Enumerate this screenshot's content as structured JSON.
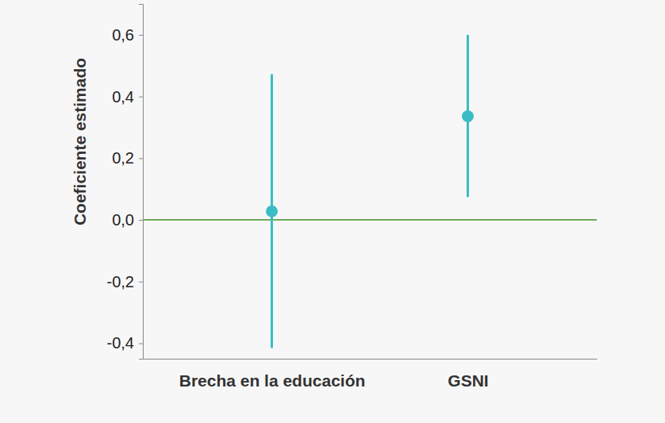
{
  "chart_data": {
    "type": "errorbar",
    "y_label": "Coeficiente estimado",
    "categories": [
      "Brecha en la educación",
      "GSNI"
    ],
    "values": [
      0.028,
      0.336
    ],
    "ci_low": [
      -0.415,
      0.074
    ],
    "ci_high": [
      0.472,
      0.6
    ],
    "color": "#3bbcc6",
    "marker": "circle",
    "reference_line": 0,
    "ylim": [
      -0.45,
      0.7
    ],
    "yticks": [
      {
        "value": -0.4,
        "label": "-0,4"
      },
      {
        "value": -0.2,
        "label": "-0,2"
      },
      {
        "value": 0,
        "label": "0,0"
      },
      {
        "value": 0.2,
        "label": "0,2"
      },
      {
        "value": 0.4,
        "label": "0,4"
      },
      {
        "value": 0.6,
        "label": "0,6"
      }
    ],
    "grid": false
  }
}
